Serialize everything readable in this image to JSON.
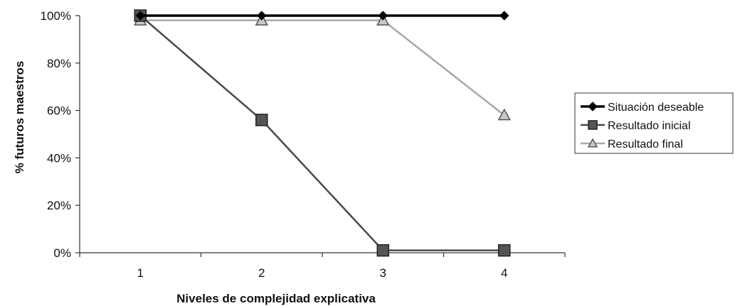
{
  "chart_data": {
    "type": "line",
    "title": "",
    "xlabel": "Niveles de complejidad explicativa",
    "ylabel": "% futuros maestros",
    "categories": [
      "1",
      "2",
      "3",
      "4"
    ],
    "ylim": [
      0,
      100
    ],
    "yticks": [
      0,
      20,
      40,
      60,
      80,
      100
    ],
    "ytick_labels": [
      "0%",
      "20%",
      "40%",
      "60%",
      "80%",
      "100%"
    ],
    "grid": false,
    "legend_position": "right",
    "series": [
      {
        "name": "Situación deseable",
        "values": [
          100,
          100,
          100,
          100
        ],
        "color": "#000000",
        "marker": "diamond"
      },
      {
        "name": "Resultado inicial",
        "values": [
          100,
          56,
          1,
          1
        ],
        "color": "#4a4a4a",
        "marker": "square"
      },
      {
        "name": "Resultado final",
        "values": [
          98,
          98,
          98,
          58
        ],
        "color": "#a8a8a8",
        "marker": "triangle"
      }
    ]
  }
}
